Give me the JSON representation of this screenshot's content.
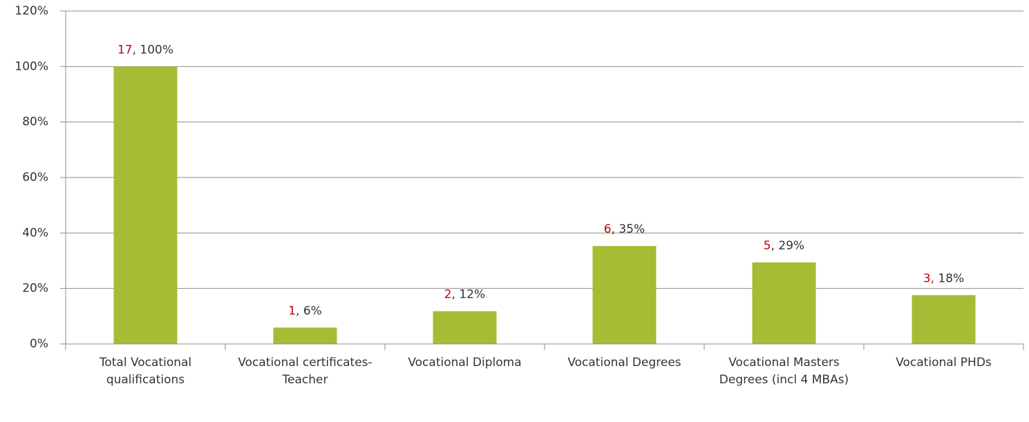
{
  "chart_data": {
    "type": "bar",
    "categories": [
      "Total Vocational qualifications",
      "Vocational certificates-Teacher",
      "Vocational Diploma",
      "Vocational Degrees",
      "Vocational Masters Degrees (incl 4 MBAs)",
      "Vocational PHDs"
    ],
    "values": [
      100,
      5.9,
      11.8,
      35.3,
      29.4,
      17.6
    ],
    "value_labels": [
      [
        "17",
        ", 100%"
      ],
      [
        "1",
        ", 6%"
      ],
      [
        "2",
        ", 12%"
      ],
      [
        "6",
        ", 35%"
      ],
      [
        "5",
        ", 29%"
      ],
      [
        "3,",
        " 18%"
      ]
    ],
    "color": "#a5bc35",
    "count_color": "#c00000",
    "ylim": [
      0,
      120
    ],
    "yticks": [
      {
        "value": 0,
        "label": "0%"
      },
      {
        "value": 20,
        "label": "20%"
      },
      {
        "value": 40,
        "label": "40%"
      },
      {
        "value": 60,
        "label": "60%"
      },
      {
        "value": 80,
        "label": "80%"
      },
      {
        "value": 100,
        "label": "100%"
      },
      {
        "value": 120,
        "label": "120%"
      }
    ],
    "grid": true
  }
}
